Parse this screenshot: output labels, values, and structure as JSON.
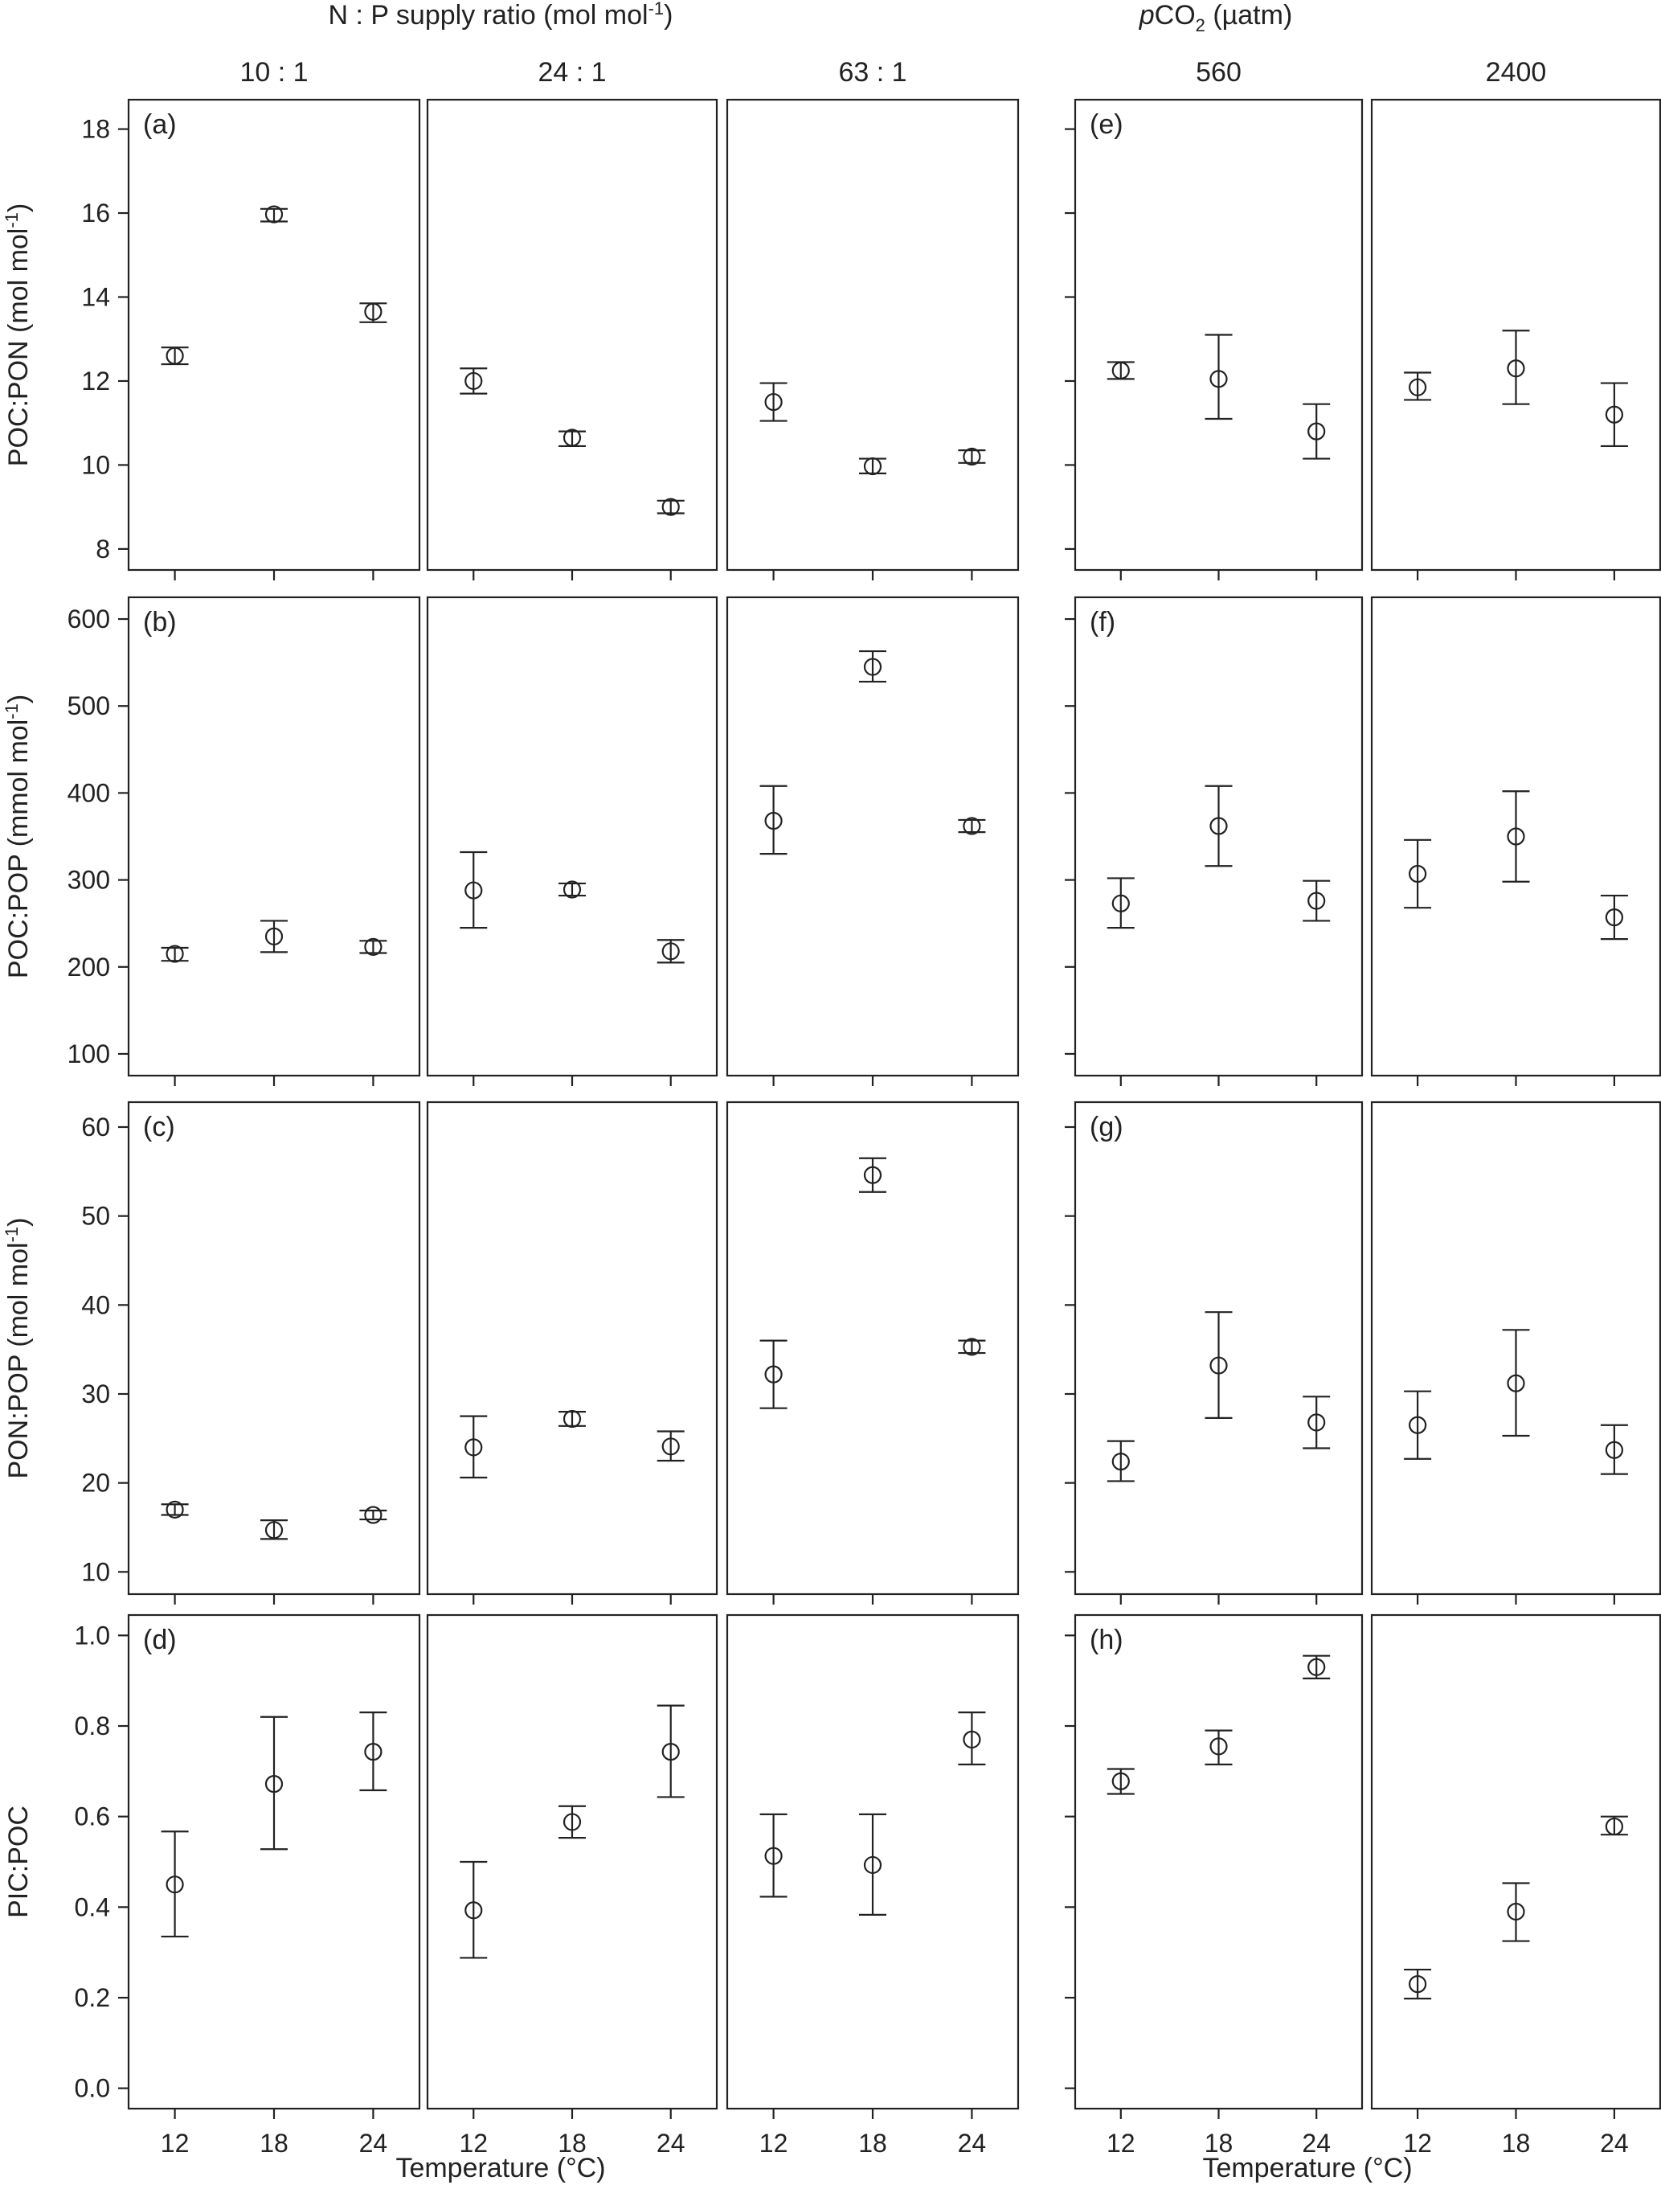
{
  "headers": {
    "np_title": "N : P supply ratio (mol mol",
    "np_title_sup": "-1",
    "np_title_end": ")",
    "pco2_title_italic": "p",
    "pco2_title_main": "CO",
    "pco2_title_sub": "2",
    "pco2_title_end": " (µatm)",
    "columns": [
      "10 : 1",
      "24 : 1",
      "63 : 1",
      "560",
      "2400"
    ]
  },
  "rows": [
    {
      "ylabel": "POC:PON (mol mol",
      "ylabel_sup": "-1",
      "ylabel_end": ")",
      "ylim": [
        7.5,
        18.7
      ],
      "ticks": [
        8,
        10,
        12,
        14,
        16,
        18
      ],
      "tick_labels": [
        "8",
        "10",
        "12",
        "14",
        "16",
        "18"
      ],
      "panel_letters": [
        "(a)",
        "(e)"
      ]
    },
    {
      "ylabel": "POC:POP (mmol mol",
      "ylabel_sup": "-1",
      "ylabel_end": ")",
      "ylim": [
        75,
        625
      ],
      "ticks": [
        100,
        200,
        300,
        400,
        500,
        600
      ],
      "tick_labels": [
        "100",
        "200",
        "300",
        "400",
        "500",
        "600"
      ],
      "panel_letters": [
        "(b)",
        "(f)"
      ]
    },
    {
      "ylabel": "PON:POP (mol mol",
      "ylabel_sup": "-1",
      "ylabel_end": ")",
      "ylim": [
        7.5,
        62.8
      ],
      "ticks": [
        10,
        20,
        30,
        40,
        50,
        60
      ],
      "tick_labels": [
        "10",
        "20",
        "30",
        "40",
        "50",
        "60"
      ],
      "panel_letters": [
        "(c)",
        "(g)"
      ]
    },
    {
      "ylabel": "PIC:POC",
      "ylabel_sup": "",
      "ylabel_end": "",
      "ylim": [
        -0.045,
        1.045
      ],
      "ticks": [
        0,
        0.2,
        0.4,
        0.6,
        0.8,
        1.0
      ],
      "tick_labels": [
        "0.0",
        "0.2",
        "0.4",
        "0.6",
        "0.8",
        "1.0"
      ],
      "panel_letters": [
        "(d)",
        "(h)"
      ]
    }
  ],
  "xaxis": {
    "ticks": [
      12,
      18,
      24
    ],
    "tick_labels": [
      "12",
      "18",
      "24"
    ],
    "label": "Temperature (°C)"
  },
  "chart_data": {
    "type": "scatter",
    "x": [
      12,
      18,
      24
    ],
    "columns": [
      "10 : 1",
      "24 : 1",
      "63 : 1",
      "560",
      "2400"
    ],
    "panels": [
      {
        "row": 0,
        "col": 0,
        "y": [
          12.6,
          15.97,
          13.65
        ],
        "err_low": [
          12.4,
          15.8,
          13.4
        ],
        "err_high": [
          12.8,
          16.1,
          13.85
        ]
      },
      {
        "row": 0,
        "col": 1,
        "y": [
          12.0,
          10.65,
          9.0
        ],
        "err_low": [
          11.7,
          10.45,
          8.85
        ],
        "err_high": [
          12.3,
          10.8,
          9.15
        ]
      },
      {
        "row": 0,
        "col": 2,
        "y": [
          11.5,
          9.97,
          10.2
        ],
        "err_low": [
          11.05,
          9.8,
          10.05
        ],
        "err_high": [
          11.95,
          10.15,
          10.35
        ]
      },
      {
        "row": 0,
        "col": 3,
        "y": [
          12.25,
          12.05,
          10.8
        ],
        "err_low": [
          12.05,
          11.1,
          10.15
        ],
        "err_high": [
          12.45,
          13.1,
          11.45
        ]
      },
      {
        "row": 0,
        "col": 4,
        "y": [
          11.85,
          12.3,
          11.2
        ],
        "err_low": [
          11.55,
          11.45,
          10.45
        ],
        "err_high": [
          12.2,
          13.2,
          11.95
        ]
      },
      {
        "row": 1,
        "col": 0,
        "y": [
          215,
          235,
          223
        ],
        "err_low": [
          207,
          217,
          216
        ],
        "err_high": [
          222,
          253,
          230
        ]
      },
      {
        "row": 1,
        "col": 1,
        "y": [
          288,
          289,
          218
        ],
        "err_low": [
          245,
          282,
          205
        ],
        "err_high": [
          332,
          296,
          231
        ]
      },
      {
        "row": 1,
        "col": 2,
        "y": [
          368,
          545,
          362
        ],
        "err_low": [
          330,
          528,
          355
        ],
        "err_high": [
          408,
          563,
          369
        ]
      },
      {
        "row": 1,
        "col": 3,
        "y": [
          273,
          362,
          276
        ],
        "err_low": [
          245,
          316,
          253
        ],
        "err_high": [
          302,
          408,
          299
        ]
      },
      {
        "row": 1,
        "col": 4,
        "y": [
          307,
          350,
          257
        ],
        "err_low": [
          268,
          298,
          232
        ],
        "err_high": [
          346,
          402,
          282
        ]
      },
      {
        "row": 2,
        "col": 0,
        "y": [
          17.0,
          14.7,
          16.4
        ],
        "err_low": [
          16.4,
          13.7,
          15.9
        ],
        "err_high": [
          17.6,
          15.8,
          16.9
        ]
      },
      {
        "row": 2,
        "col": 1,
        "y": [
          24.0,
          27.2,
          24.1
        ],
        "err_low": [
          20.6,
          26.4,
          22.5
        ],
        "err_high": [
          27.5,
          28.0,
          25.8
        ]
      },
      {
        "row": 2,
        "col": 2,
        "y": [
          32.2,
          54.6,
          35.3
        ],
        "err_low": [
          28.4,
          52.7,
          34.6
        ],
        "err_high": [
          36.0,
          56.5,
          36.0
        ]
      },
      {
        "row": 2,
        "col": 3,
        "y": [
          22.4,
          33.2,
          26.8
        ],
        "err_low": [
          20.2,
          27.3,
          23.9
        ],
        "err_high": [
          24.7,
          39.2,
          29.7
        ]
      },
      {
        "row": 2,
        "col": 4,
        "y": [
          26.5,
          31.2,
          23.7
        ],
        "err_low": [
          22.7,
          25.3,
          21.0
        ],
        "err_high": [
          30.3,
          37.2,
          26.5
        ]
      },
      {
        "row": 3,
        "col": 0,
        "y": [
          0.45,
          0.672,
          0.743
        ],
        "err_low": [
          0.335,
          0.528,
          0.658
        ],
        "err_high": [
          0.567,
          0.82,
          0.83
        ]
      },
      {
        "row": 3,
        "col": 1,
        "y": [
          0.393,
          0.588,
          0.743
        ],
        "err_low": [
          0.288,
          0.553,
          0.643
        ],
        "err_high": [
          0.5,
          0.623,
          0.845
        ]
      },
      {
        "row": 3,
        "col": 2,
        "y": [
          0.513,
          0.493,
          0.77
        ],
        "err_low": [
          0.423,
          0.383,
          0.715
        ],
        "err_high": [
          0.605,
          0.605,
          0.83
        ]
      },
      {
        "row": 3,
        "col": 3,
        "y": [
          0.678,
          0.755,
          0.93
        ],
        "err_low": [
          0.65,
          0.715,
          0.905
        ],
        "err_high": [
          0.705,
          0.79,
          0.955
        ]
      },
      {
        "row": 3,
        "col": 4,
        "y": [
          0.23,
          0.39,
          0.578
        ],
        "err_low": [
          0.198,
          0.325,
          0.56
        ],
        "err_high": [
          0.262,
          0.453,
          0.6
        ]
      }
    ]
  }
}
